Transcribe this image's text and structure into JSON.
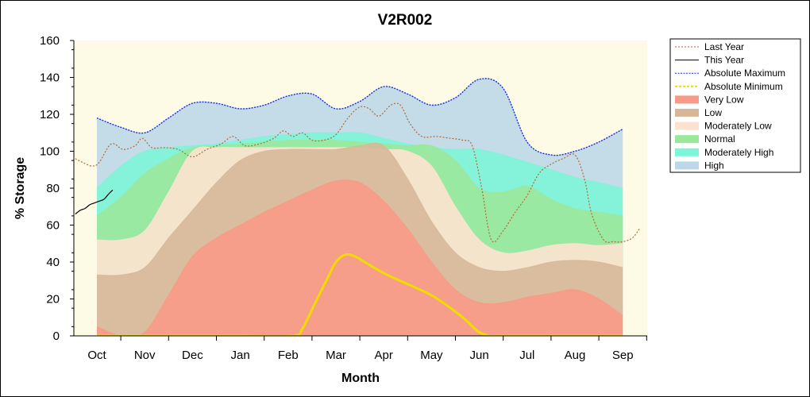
{
  "chart_data": {
    "type": "area",
    "title": "V2R002",
    "xlabel": "Month",
    "ylabel": "% Storage",
    "ylim": [
      0,
      160
    ],
    "yticks": [
      0,
      20,
      40,
      60,
      80,
      100,
      120,
      140,
      160
    ],
    "categories": [
      "Oct",
      "Nov",
      "Dec",
      "Jan",
      "Feb",
      "Mar",
      "Apr",
      "May",
      "Jun",
      "Jul",
      "Aug",
      "Sep"
    ],
    "grid": false,
    "legend_position": "right",
    "colors": {
      "plot_background": "#fdfbe6",
      "very_low": "#f89a86",
      "low": "#d6b899",
      "moderately_low": "#fde3cf",
      "normal": "#9be89b",
      "moderately_high": "#7ef4d8",
      "high": "#bcd8e8",
      "last_year": "#b5683a",
      "this_year": "#000000",
      "absolute_maximum": "#1a2ee0",
      "absolute_minimum": "#f2dc00"
    },
    "bands": [
      {
        "name": "Very Low",
        "x": [
          0,
          0.5,
          1,
          1.5,
          2,
          2.5,
          3,
          3.5,
          4,
          4.5,
          5,
          5.5,
          6,
          6.5,
          7,
          7.5,
          8,
          8.5,
          9,
          9.5,
          10,
          10.5,
          11
        ],
        "values": [
          5,
          0,
          2,
          22,
          43,
          53,
          60,
          67,
          73,
          79,
          84,
          83,
          73,
          58,
          40,
          25,
          18,
          18,
          21,
          23,
          25,
          20,
          11
        ]
      },
      {
        "name": "Low",
        "x": [
          0,
          0.5,
          1,
          1.5,
          2,
          2.5,
          3,
          3.5,
          4,
          4.5,
          5,
          5.5,
          6,
          6.5,
          7,
          7.5,
          8,
          8.5,
          9,
          9.5,
          10,
          10.5,
          11
        ],
        "values": [
          33,
          33,
          37,
          53,
          68,
          83,
          95,
          100,
          101,
          101,
          101,
          103,
          103,
          85,
          62,
          45,
          37,
          35,
          37,
          40,
          41,
          40,
          37
        ]
      },
      {
        "name": "Moderately Low",
        "x": [
          0,
          0.5,
          1,
          1.5,
          2,
          2.5,
          3,
          3.5,
          4,
          4.5,
          5,
          5.5,
          6,
          6.5,
          7,
          7.5,
          8,
          8.5,
          9,
          9.5,
          10,
          10.5,
          11
        ],
        "values": [
          52,
          52,
          57,
          78,
          100,
          102,
          102,
          102,
          102,
          102,
          102,
          102,
          101,
          100,
          92,
          70,
          52,
          45,
          46,
          49,
          50,
          49,
          50
        ]
      },
      {
        "name": "Normal",
        "x": [
          0,
          0.5,
          1,
          1.5,
          2,
          2.5,
          3,
          3.5,
          4,
          4.5,
          5,
          5.5,
          6,
          6.5,
          7,
          7.5,
          8,
          8.5,
          9,
          9.5,
          10,
          10.5,
          11
        ],
        "values": [
          65,
          75,
          88,
          96,
          102,
          103,
          104,
          105,
          106,
          106,
          106,
          105,
          104,
          103,
          103,
          95,
          80,
          78,
          81,
          74,
          69,
          67,
          65
        ]
      },
      {
        "name": "Moderately High",
        "x": [
          0,
          0.5,
          1,
          1.5,
          2,
          2.5,
          3,
          3.5,
          4,
          4.5,
          5,
          5.5,
          6,
          6.5,
          7,
          7.5,
          8,
          8.5,
          9,
          9.5,
          10,
          10.5,
          11
        ],
        "values": [
          80,
          92,
          100,
          102,
          103,
          104,
          106,
          108,
          109,
          110,
          110,
          110,
          107,
          104,
          102,
          101,
          101,
          98,
          94,
          90,
          86,
          83,
          80
        ]
      },
      {
        "name": "High",
        "x": [
          0,
          0.5,
          1,
          1.5,
          2,
          2.5,
          3,
          3.5,
          4,
          4.5,
          5,
          5.5,
          6,
          6.5,
          7,
          7.5,
          8,
          8.5,
          9,
          9.5,
          10,
          10.5,
          11
        ],
        "values": [
          118,
          113,
          110,
          118,
          126,
          126,
          123,
          125,
          130,
          131,
          123,
          127,
          135,
          131,
          125,
          129,
          139,
          134,
          105,
          98,
          100,
          105,
          112
        ]
      }
    ],
    "series": [
      {
        "name": "Last Year",
        "style": "dotted",
        "x": [
          -0.45,
          -0.3,
          -0.1,
          0.05,
          0.3,
          0.55,
          0.8,
          0.95,
          1.15,
          1.4,
          1.7,
          2.0,
          2.3,
          2.6,
          2.85,
          3.1,
          3.4,
          3.7,
          3.9,
          4.1,
          4.3,
          4.5,
          4.75,
          5.0,
          5.25,
          5.5,
          5.7,
          5.9,
          6.15,
          6.35,
          6.55,
          6.8,
          7.1,
          7.4,
          7.65,
          7.85,
          8.05,
          8.25,
          8.5,
          8.75,
          9.0,
          9.25,
          9.5,
          9.75,
          10.0,
          10.2,
          10.35,
          10.6,
          10.8,
          11.0,
          11.2,
          11.35
        ],
        "values": [
          96,
          94,
          92,
          94,
          104,
          101,
          103,
          107,
          102,
          102,
          101,
          97,
          101,
          104,
          108,
          103,
          104,
          107,
          111,
          108,
          110,
          106,
          106,
          109,
          118,
          124,
          123,
          119,
          125,
          125,
          115,
          108,
          108,
          107,
          106,
          103,
          80,
          52,
          57,
          67,
          76,
          88,
          93,
          96,
          98,
          85,
          66,
          52,
          51,
          51,
          53,
          58
        ]
      },
      {
        "name": "This Year",
        "style": "solid",
        "x": [
          -0.45,
          -0.35,
          -0.25,
          -0.15,
          -0.05,
          0.05,
          0.15,
          0.25,
          0.33
        ],
        "values": [
          66,
          68,
          69,
          71,
          72,
          73,
          74,
          77,
          79
        ]
      },
      {
        "name": "Absolute Maximum",
        "style": "dashdot",
        "x": [
          0,
          0.5,
          1,
          1.5,
          2,
          2.5,
          3,
          3.5,
          4,
          4.5,
          5,
          5.5,
          6,
          6.5,
          7,
          7.5,
          8,
          8.5,
          9,
          9.5,
          10,
          10.5,
          11
        ],
        "values": [
          118,
          113,
          110,
          118,
          126,
          126,
          123,
          125,
          130,
          131,
          123,
          127,
          135,
          131,
          125,
          129,
          139,
          134,
          105,
          98,
          100,
          105,
          112
        ]
      },
      {
        "name": "Absolute Minimum",
        "style": "dashed",
        "x": [
          0,
          1,
          2,
          3,
          4.1,
          4.3,
          4.55,
          4.8,
          5.0,
          5.2,
          5.4,
          5.6,
          6.0,
          6.5,
          7.0,
          7.4,
          7.7,
          7.9,
          8.0,
          8.2,
          8.5,
          9,
          10,
          11
        ],
        "values": [
          0,
          0,
          0,
          0,
          0,
          4,
          17,
          30,
          40,
          44,
          43,
          40,
          34,
          28,
          22,
          15,
          9,
          4,
          2,
          0,
          0,
          0,
          0,
          0
        ]
      }
    ],
    "legend": [
      "Last Year",
      "This Year",
      "Absolute Maximum",
      "Absolute Minimum",
      "Very Low",
      "Low",
      "Moderately Low",
      "Normal",
      "Moderately High",
      "High"
    ]
  }
}
